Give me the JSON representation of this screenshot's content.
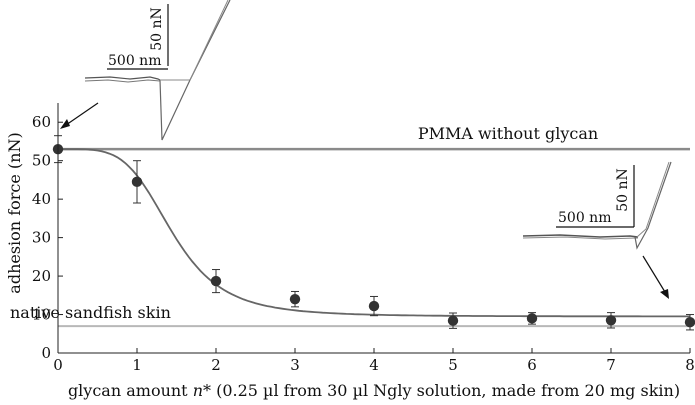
{
  "chart_data": {
    "type": "scatter",
    "title": "",
    "xlabel_prefix": "glycan amount ",
    "xlabel_var": "n*",
    "xlabel_suffix": " (0.25 µl from 30 µl Ngly solution, made from 20 mg skin)",
    "ylabel": "adhesion force (nN)",
    "xlim": [
      0,
      8
    ],
    "ylim": [
      0,
      65
    ],
    "x_ticks": [
      0,
      1,
      2,
      3,
      4,
      5,
      6,
      7,
      8
    ],
    "y_ticks": [
      0,
      10,
      20,
      30,
      40,
      50,
      60
    ],
    "grid": false,
    "series": [
      {
        "values": [
          {
            "x": 0,
            "y": 53.0,
            "err": 3.5
          },
          {
            "x": 1,
            "y": 44.5,
            "err": 5.5
          },
          {
            "x": 2,
            "y": 18.7,
            "err": 3.0
          },
          {
            "x": 3,
            "y": 14.0,
            "err": 2.0
          },
          {
            "x": 4,
            "y": 12.2,
            "err": 2.5
          },
          {
            "x": 5,
            "y": 8.4,
            "err": 2.0
          },
          {
            "x": 6,
            "y": 9.0,
            "err": 1.5
          },
          {
            "x": 7,
            "y": 8.5,
            "err": 2.0
          },
          {
            "x": 8,
            "y": 8.0,
            "err": 2.0
          }
        ]
      }
    ],
    "fit_curve": {
      "top": 53,
      "bottom": 9.5,
      "x50": 1.45,
      "slope": 4.5
    },
    "reference_lines": [
      {
        "label": "PMMA without glycan",
        "y": 53,
        "color": "#8a8a8a"
      },
      {
        "label": "native sandfish skin",
        "y": 7,
        "color": "#b8b8b8"
      }
    ],
    "insets": [
      {
        "force_scale_label": "50 nN",
        "distance_scale_label": "500 nm"
      },
      {
        "force_scale_label": "50 nN",
        "distance_scale_label": "500 nm"
      }
    ],
    "colors": {
      "points": "#333333",
      "fit": "#666666",
      "axis": "#222222"
    }
  }
}
